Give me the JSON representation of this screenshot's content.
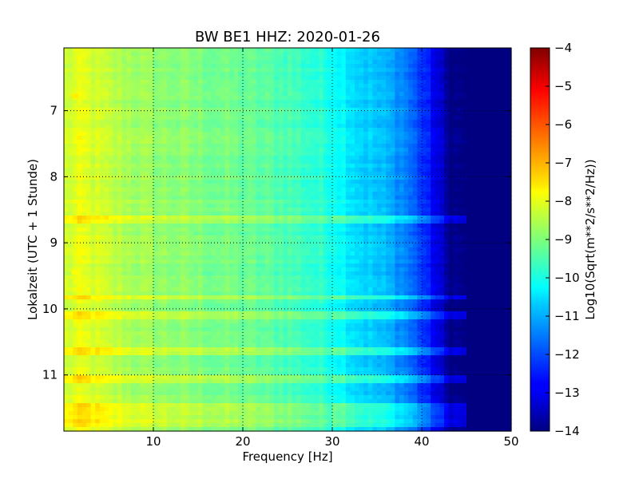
{
  "chart_data": {
    "type": "heatmap",
    "title": "BW BE1 HHZ: 2020-01-26",
    "xlabel": "Frequency [Hz]",
    "ylabel": "Lokalzeit (UTC + 1 Stunde)",
    "xlim": [
      0,
      50
    ],
    "ylim": [
      6.05,
      11.85
    ],
    "y_inverted": true,
    "x_ticks": [
      10,
      20,
      30,
      40,
      50
    ],
    "y_ticks": [
      7,
      8,
      9,
      10,
      11
    ],
    "grid": true,
    "colormap": "jet",
    "colorbar": {
      "label": "Log10(Sqrt(m**2/s**2/Hz))",
      "range": [
        -14,
        -4
      ],
      "ticks": [
        -4,
        -5,
        -6,
        -7,
        -8,
        -9,
        -10,
        -11,
        -12,
        -13,
        -14
      ]
    },
    "spectrum_profile": {
      "frequency_hz": [
        0,
        2,
        5,
        10,
        15,
        20,
        25,
        30,
        33,
        36,
        38,
        40,
        42,
        43,
        45,
        50
      ],
      "log_amplitude": [
        -8.3,
        -8.0,
        -8.4,
        -8.8,
        -9.0,
        -9.2,
        -9.5,
        -10.0,
        -10.6,
        -11.0,
        -11.4,
        -12.2,
        -13.2,
        -13.9,
        -14.0,
        -14.0
      ]
    },
    "bright_bands_hours": [
      8.65,
      9.82,
      10.1,
      10.65,
      11.05,
      11.48,
      11.62,
      11.72
    ],
    "highlight_cells": [
      {
        "time": 6.78,
        "frequency_hz": 1.2,
        "value": -7.6
      },
      {
        "time": 9.45,
        "frequency_hz": 1.2,
        "value": -7.8
      },
      {
        "time": 9.84,
        "frequency_hz": 3.8,
        "value": -7.7
      }
    ]
  }
}
